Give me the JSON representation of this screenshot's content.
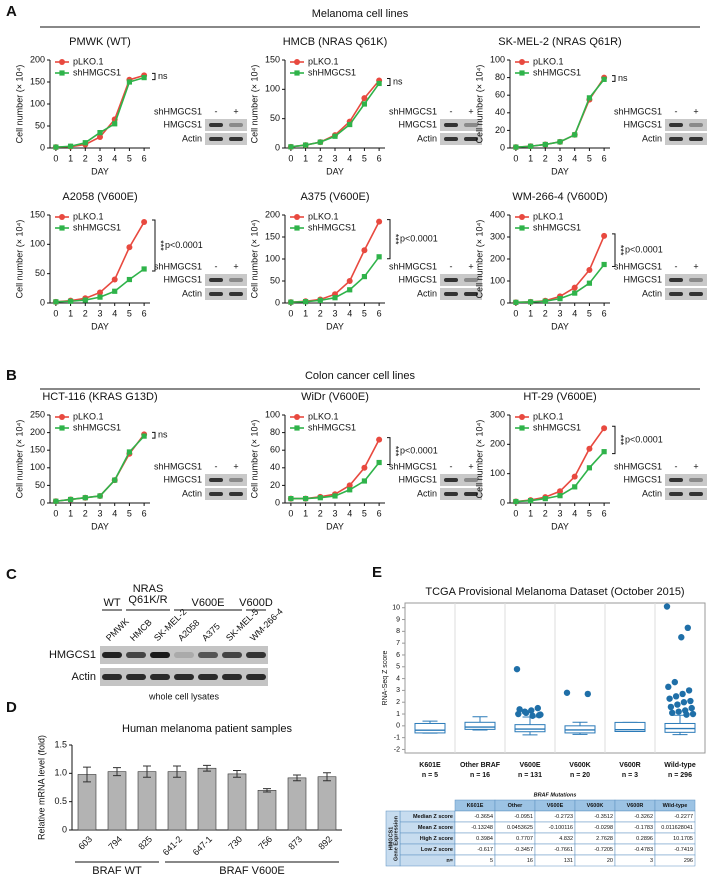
{
  "panel_labels": [
    "A",
    "B",
    "C",
    "D",
    "E"
  ],
  "section_headers": [
    "Melanoma cell lines",
    "Colon cancer cell lines"
  ],
  "chart_data": [
    {
      "type": "line",
      "title": "PMWK (WT)",
      "xlabel": "DAY",
      "ylabel": "Cell number (× 10⁴)",
      "x": [
        0,
        1,
        2,
        3,
        4,
        5,
        6
      ],
      "xlim": [
        -0.4,
        6.4
      ],
      "xticks": [
        0,
        1,
        2,
        3,
        4,
        5,
        6
      ],
      "ylim": [
        0,
        200
      ],
      "yticks": [
        0,
        50,
        100,
        150,
        200
      ],
      "series": [
        {
          "name": "pLKO.1",
          "color": "#e8493f",
          "marker": "circle",
          "values": [
            2,
            3,
            8,
            25,
            65,
            155,
            165
          ]
        },
        {
          "name": "shHMGCS1",
          "color": "#2fb34a",
          "marker": "square",
          "values": [
            2,
            4,
            12,
            35,
            55,
            150,
            160
          ]
        }
      ],
      "annotations": [
        "ns"
      ],
      "inset": {
        "title": "shHMGCS1",
        "lanes": [
          "-",
          "+"
        ],
        "rows": [
          "HMGCS1",
          "Actin"
        ]
      }
    },
    {
      "type": "line",
      "title": "HMCB (NRAS Q61K)",
      "xlabel": "DAY",
      "ylabel": "Cell number (× 10⁴)",
      "x": [
        0,
        1,
        2,
        3,
        4,
        5,
        6
      ],
      "xlim": [
        -0.4,
        6.4
      ],
      "xticks": [
        0,
        1,
        2,
        3,
        4,
        5,
        6
      ],
      "ylim": [
        0,
        150
      ],
      "yticks": [
        0,
        50,
        100,
        150
      ],
      "series": [
        {
          "name": "pLKO.1",
          "color": "#e8493f",
          "marker": "circle",
          "values": [
            2,
            5,
            10,
            22,
            45,
            85,
            115
          ]
        },
        {
          "name": "shHMGCS1",
          "color": "#2fb34a",
          "marker": "square",
          "values": [
            2,
            5,
            10,
            20,
            40,
            75,
            110
          ]
        }
      ],
      "annotations": [
        "ns"
      ],
      "inset": {
        "title": "shHMGCS1",
        "lanes": [
          "-",
          "+"
        ],
        "rows": [
          "HMGCS1",
          "Actin"
        ]
      }
    },
    {
      "type": "line",
      "title": "SK-MEL-2 (NRAS Q61R)",
      "xlabel": "DAY",
      "ylabel": "Cell number (× 10⁴)",
      "x": [
        0,
        1,
        2,
        3,
        4,
        5,
        6
      ],
      "xlim": [
        -0.4,
        6.4
      ],
      "xticks": [
        0,
        1,
        2,
        3,
        4,
        5,
        6
      ],
      "ylim": [
        0,
        100
      ],
      "yticks": [
        0,
        20,
        40,
        60,
        80,
        100
      ],
      "series": [
        {
          "name": "pLKO.1",
          "color": "#e8493f",
          "marker": "circle",
          "values": [
            1,
            2,
            4,
            7,
            15,
            55,
            80
          ]
        },
        {
          "name": "shHMGCS1",
          "color": "#2fb34a",
          "marker": "square",
          "values": [
            1,
            2,
            4,
            7,
            15,
            57,
            78
          ]
        }
      ],
      "annotations": [
        "ns"
      ],
      "inset": {
        "title": "shHMGCS1",
        "lanes": [
          "-",
          "+"
        ],
        "rows": [
          "HMGCS1",
          "Actin"
        ]
      }
    },
    {
      "type": "line",
      "title": "A2058 (V600E)",
      "xlabel": "DAY",
      "ylabel": "Cell number (× 10⁴)",
      "x": [
        0,
        1,
        2,
        3,
        4,
        5,
        6
      ],
      "xlim": [
        -0.4,
        6.4
      ],
      "xticks": [
        0,
        1,
        2,
        3,
        4,
        5,
        6
      ],
      "ylim": [
        0,
        150
      ],
      "yticks": [
        0,
        50,
        100,
        150
      ],
      "series": [
        {
          "name": "pLKO.1",
          "color": "#e8493f",
          "marker": "circle",
          "values": [
            2,
            4,
            8,
            18,
            40,
            95,
            138
          ]
        },
        {
          "name": "shHMGCS1",
          "color": "#2fb34a",
          "marker": "square",
          "values": [
            2,
            3,
            5,
            10,
            20,
            40,
            58
          ]
        }
      ],
      "annotations": [
        "***",
        "p<0.0001"
      ],
      "inset": {
        "title": "shHMGCS1",
        "lanes": [
          "-",
          "+"
        ],
        "rows": [
          "HMGCS1",
          "Actin"
        ]
      }
    },
    {
      "type": "line",
      "title": "A375 (V600E)",
      "xlabel": "DAY",
      "ylabel": "Cell number (× 10⁴)",
      "x": [
        0,
        1,
        2,
        3,
        4,
        5,
        6
      ],
      "xlim": [
        -0.4,
        6.4
      ],
      "xticks": [
        0,
        1,
        2,
        3,
        4,
        5,
        6
      ],
      "ylim": [
        0,
        200
      ],
      "yticks": [
        0,
        50,
        100,
        150,
        200
      ],
      "series": [
        {
          "name": "pLKO.1",
          "color": "#e8493f",
          "marker": "circle",
          "values": [
            2,
            4,
            8,
            20,
            50,
            120,
            185
          ]
        },
        {
          "name": "shHMGCS1",
          "color": "#2fb34a",
          "marker": "square",
          "values": [
            2,
            3,
            6,
            12,
            30,
            60,
            105
          ]
        }
      ],
      "annotations": [
        "***",
        "p<0.0001"
      ],
      "inset": {
        "title": "shHMGCS1",
        "lanes": [
          "-",
          "+"
        ],
        "rows": [
          "HMGCS1",
          "Actin"
        ]
      }
    },
    {
      "type": "line",
      "title": "WM-266-4 (V600D)",
      "xlabel": "DAY",
      "ylabel": "Cell number (× 10⁴)",
      "x": [
        0,
        1,
        2,
        3,
        4,
        5,
        6
      ],
      "xlim": [
        -0.4,
        6.4
      ],
      "xticks": [
        0,
        1,
        2,
        3,
        4,
        5,
        6
      ],
      "ylim": [
        0,
        400
      ],
      "yticks": [
        0,
        100,
        200,
        300,
        400
      ],
      "series": [
        {
          "name": "pLKO.1",
          "color": "#e8493f",
          "marker": "circle",
          "values": [
            3,
            5,
            10,
            30,
            70,
            150,
            305
          ]
        },
        {
          "name": "shHMGCS1",
          "color": "#2fb34a",
          "marker": "square",
          "values": [
            3,
            5,
            8,
            20,
            45,
            90,
            175
          ]
        }
      ],
      "annotations": [
        "***",
        "p<0.0001"
      ],
      "inset": {
        "title": "shHMGCS1",
        "lanes": [
          "-",
          "+"
        ],
        "rows": [
          "HMGCS1",
          "Actin"
        ]
      }
    },
    {
      "type": "line",
      "title": "HCT-116 (KRAS G13D)",
      "xlabel": "DAY",
      "ylabel": "Cell number (× 10⁴)",
      "x": [
        0,
        1,
        2,
        3,
        4,
        5,
        6
      ],
      "xlim": [
        -0.4,
        6.4
      ],
      "xticks": [
        0,
        1,
        2,
        3,
        4,
        5,
        6
      ],
      "ylim": [
        0,
        250
      ],
      "yticks": [
        0,
        50,
        100,
        150,
        200,
        250
      ],
      "series": [
        {
          "name": "pLKO.1",
          "color": "#e8493f",
          "marker": "circle",
          "values": [
            5,
            10,
            15,
            20,
            65,
            140,
            195
          ]
        },
        {
          "name": "shHMGCS1",
          "color": "#2fb34a",
          "marker": "square",
          "values": [
            5,
            10,
            15,
            20,
            65,
            145,
            190
          ]
        }
      ],
      "annotations": [
        "ns"
      ],
      "inset": {
        "title": "shHMGCS1",
        "lanes": [
          "-",
          "+"
        ],
        "rows": [
          "HMGCS1",
          "Actin"
        ]
      }
    },
    {
      "type": "line",
      "title": "WiDr (V600E)",
      "xlabel": "DAY",
      "ylabel": "Cell number (× 10⁴)",
      "x": [
        0,
        1,
        2,
        3,
        4,
        5,
        6
      ],
      "xlim": [
        -0.4,
        6.4
      ],
      "xticks": [
        0,
        1,
        2,
        3,
        4,
        5,
        6
      ],
      "ylim": [
        0,
        100
      ],
      "yticks": [
        0,
        20,
        40,
        60,
        80,
        100
      ],
      "series": [
        {
          "name": "pLKO.1",
          "color": "#e8493f",
          "marker": "circle",
          "values": [
            5,
            5,
            7,
            10,
            20,
            40,
            72
          ]
        },
        {
          "name": "shHMGCS1",
          "color": "#2fb34a",
          "marker": "square",
          "values": [
            5,
            5,
            6,
            8,
            15,
            25,
            46
          ]
        }
      ],
      "annotations": [
        "***",
        "p<0.0001"
      ],
      "inset": {
        "title": "shHMGCS1",
        "lanes": [
          "-",
          "+"
        ],
        "rows": [
          "HMGCS1",
          "Actin"
        ]
      }
    },
    {
      "type": "line",
      "title": "HT-29 (V600E)",
      "xlabel": "DAY",
      "ylabel": "Cell number (× 10⁴)",
      "x": [
        0,
        1,
        2,
        3,
        4,
        5,
        6
      ],
      "xlim": [
        -0.4,
        6.4
      ],
      "xticks": [
        0,
        1,
        2,
        3,
        4,
        5,
        6
      ],
      "ylim": [
        0,
        300
      ],
      "yticks": [
        0,
        100,
        200,
        300
      ],
      "series": [
        {
          "name": "pLKO.1",
          "color": "#e8493f",
          "marker": "circle",
          "values": [
            5,
            10,
            20,
            40,
            90,
            185,
            255
          ]
        },
        {
          "name": "shHMGCS1",
          "color": "#2fb34a",
          "marker": "square",
          "values": [
            5,
            8,
            15,
            25,
            55,
            120,
            175
          ]
        }
      ],
      "annotations": [
        "***",
        "p<0.0001"
      ],
      "inset": {
        "title": "shHMGCS1",
        "lanes": [
          "-",
          "+"
        ],
        "rows": [
          "HMGCS1",
          "Actin"
        ]
      }
    },
    {
      "type": "bar",
      "title": "Human melanoma patient samples",
      "ylabel": "Relative mRNA level (fold)",
      "color": "#b3b3b3",
      "categories": [
        "603",
        "794",
        "825",
        "641-2",
        "647-1",
        "730",
        "756",
        "873",
        "892"
      ],
      "category_groups": [
        "BRAF WT",
        "BRAF WT",
        "BRAF WT",
        "BRAF V600E",
        "BRAF V600E",
        "BRAF V600E",
        "BRAF V600E",
        "BRAF V600E",
        "BRAF V600E"
      ],
      "values": [
        0.98,
        1.03,
        1.03,
        1.03,
        1.09,
        0.99,
        0.7,
        0.92,
        0.94
      ],
      "errors": [
        0.13,
        0.07,
        0.1,
        0.1,
        0.05,
        0.06,
        0.03,
        0.05,
        0.07
      ],
      "ylim": [
        0,
        1.5
      ],
      "yticks": [
        0,
        0.5,
        {
          "value": 1,
          "label": "1.0"
        },
        1.5
      ]
    },
    {
      "type": "box",
      "title": "TCGA Provisional Melanoma Dataset (October 2015)",
      "ylabel": "RNA-Seq Z score",
      "color": "#2a7ab8",
      "categories": [
        "K601E",
        "Other BRAF",
        "V600E",
        "V600K",
        "V600R",
        "Wild-type"
      ],
      "n_labels": [
        "n = 5",
        "n = 16",
        "n = 131",
        "n = 20",
        "n = 3",
        "n = 296"
      ],
      "boxes": [
        {
          "low": -0.62,
          "q1": -0.6,
          "median": -0.37,
          "q3": 0.2,
          "high": 0.4,
          "outliers": []
        },
        {
          "low": -0.35,
          "q1": -0.3,
          "median": -0.1,
          "q3": 0.3,
          "high": 0.77,
          "outliers": []
        },
        {
          "low": -0.77,
          "q1": -0.5,
          "median": -0.27,
          "q3": 0.1,
          "high": 0.75,
          "outliers": [
            4.8,
            1.5,
            1.3,
            1.2,
            1.0,
            0.9,
            0.85,
            1.1,
            1.4,
            0.95
          ]
        },
        {
          "low": -0.72,
          "q1": -0.6,
          "median": -0.35,
          "q3": 0.0,
          "high": 0.3,
          "outliers": [
            2.8,
            2.7
          ]
        },
        {
          "low": -0.48,
          "q1": -0.48,
          "median": -0.33,
          "q3": 0.29,
          "high": 0.29,
          "outliers": []
        },
        {
          "low": -0.74,
          "q1": -0.55,
          "median": -0.23,
          "q3": 0.2,
          "high": 0.9,
          "outliers": [
            10.1,
            8.3,
            7.5,
            3.7,
            3.3,
            3.0,
            2.7,
            2.5,
            2.3,
            2.1,
            2.0,
            1.8,
            1.6,
            1.5,
            1.3,
            1.2,
            1.1,
            1.0,
            0.95
          ]
        }
      ],
      "ylim": [
        -2.3,
        10.4
      ],
      "yticks": [
        -2,
        -1,
        0,
        1,
        2,
        3,
        4,
        5,
        6,
        7,
        8,
        9,
        10
      ]
    }
  ],
  "blot": {
    "groups": [
      "WT",
      "NRAS",
      "Q61K/R",
      "V600E",
      "V600D"
    ],
    "lanes": [
      "PMWK",
      "HMCB",
      "SK-MEL-2",
      "A2058",
      "A375",
      "SK-MEL-5",
      "WM-266-4"
    ],
    "rows": [
      "HMGCS1",
      "Actin"
    ],
    "caption": "whole cell lysates"
  },
  "table": {
    "title": "BRAF Mutations",
    "side_label": [
      "HMGCS1",
      "Gene Expression"
    ],
    "columns": [
      "K601E",
      "Other",
      "V600E",
      "V600K",
      "V600R",
      "Wild-type"
    ],
    "rows": [
      {
        "label": "Median Z score",
        "cells": [
          "-0.3654",
          "-0.0951",
          "-0.2723",
          "-0.3512",
          "-0.3262",
          "-0.2277"
        ]
      },
      {
        "label": "Mean Z score",
        "cells": [
          "-0.13248",
          "0.0453625",
          "-0.100116",
          "-0.0298",
          "-0.1783",
          "0.011628041"
        ]
      },
      {
        "label": "High Z score",
        "cells": [
          "0.3984",
          "0.7707",
          "4.832",
          "2.7628",
          "0.2896",
          "10.1705"
        ]
      },
      {
        "label": "Low Z score",
        "cells": [
          "-0.617",
          "-0.3457",
          "-0.7661",
          "-0.7205",
          "-0.4783",
          "-0.7419"
        ]
      },
      {
        "label": "n=",
        "cells": [
          "5",
          "16",
          "131",
          "20",
          "3",
          "296"
        ]
      }
    ]
  }
}
